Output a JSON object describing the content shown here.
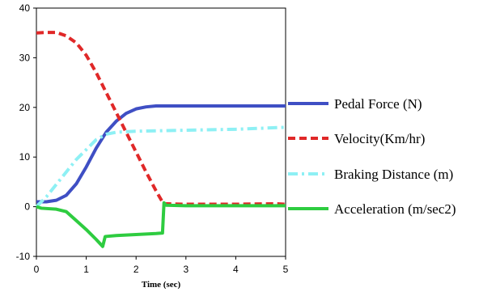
{
  "chart_data": {
    "type": "line",
    "title": "",
    "xlabel": "Time (sec)",
    "ylabel": "",
    "xlim": [
      0,
      5
    ],
    "ylim": [
      -10,
      40
    ],
    "x_ticks": [
      "0",
      "1",
      "2",
      "3",
      "4",
      "5"
    ],
    "y_ticks": [
      "-10",
      "0",
      "10",
      "20",
      "30",
      "40"
    ],
    "grid": false,
    "legend_position": "right",
    "series": [
      {
        "name": "Pedal Force (N)",
        "color": "#3f4fc4",
        "style": "solid",
        "points": [
          [
            0,
            1
          ],
          [
            0.2,
            1
          ],
          [
            0.4,
            1.3
          ],
          [
            0.6,
            2.3
          ],
          [
            0.8,
            4.6
          ],
          [
            1.0,
            8
          ],
          [
            1.2,
            11.8
          ],
          [
            1.4,
            15
          ],
          [
            1.6,
            17.2
          ],
          [
            1.8,
            18.8
          ],
          [
            2.0,
            19.7
          ],
          [
            2.2,
            20.1
          ],
          [
            2.4,
            20.3
          ],
          [
            2.6,
            20.3
          ],
          [
            3,
            20.3
          ],
          [
            4,
            20.3
          ],
          [
            5,
            20.3
          ]
        ]
      },
      {
        "name": "Velocity(Km/hr)",
        "color": "#e02828",
        "style": "dashed",
        "points": [
          [
            0,
            35
          ],
          [
            0.2,
            35.1
          ],
          [
            0.4,
            35.1
          ],
          [
            0.6,
            34.4
          ],
          [
            0.8,
            33
          ],
          [
            1.0,
            30.5
          ],
          [
            1.2,
            27
          ],
          [
            1.4,
            23
          ],
          [
            1.6,
            19
          ],
          [
            1.8,
            15
          ],
          [
            2.0,
            11
          ],
          [
            2.2,
            7
          ],
          [
            2.4,
            3.2
          ],
          [
            2.55,
            0.6
          ],
          [
            3,
            0.5
          ],
          [
            4,
            0.5
          ],
          [
            4.8,
            0.6
          ],
          [
            5,
            0.5
          ]
        ]
      },
      {
        "name": "Braking Distance (m)",
        "color": "#8ef0f4",
        "style": "dashdot",
        "points": [
          [
            0,
            0
          ],
          [
            0.2,
            2
          ],
          [
            0.4,
            4.5
          ],
          [
            0.6,
            7
          ],
          [
            0.8,
            9.5
          ],
          [
            1.0,
            11.5
          ],
          [
            1.2,
            13.5
          ],
          [
            1.4,
            14.6
          ],
          [
            1.6,
            15
          ],
          [
            2.0,
            15.2
          ],
          [
            3,
            15.4
          ],
          [
            4,
            15.6
          ],
          [
            5,
            16
          ]
        ]
      },
      {
        "name": "Acceleration (m/sec2)",
        "color": "#2ecc40",
        "style": "solid",
        "points": [
          [
            0,
            0
          ],
          [
            0.1,
            -0.3
          ],
          [
            0.4,
            -0.5
          ],
          [
            0.6,
            -1
          ],
          [
            0.8,
            -2.8
          ],
          [
            1.0,
            -4.6
          ],
          [
            1.2,
            -6.6
          ],
          [
            1.33,
            -8
          ],
          [
            1.38,
            -6
          ],
          [
            1.6,
            -5.8
          ],
          [
            2.0,
            -5.6
          ],
          [
            2.4,
            -5.4
          ],
          [
            2.53,
            -5.3
          ],
          [
            2.56,
            0.8
          ],
          [
            2.6,
            0.3
          ],
          [
            3,
            0.2
          ],
          [
            4,
            0.2
          ],
          [
            5,
            0.2
          ]
        ]
      }
    ]
  }
}
